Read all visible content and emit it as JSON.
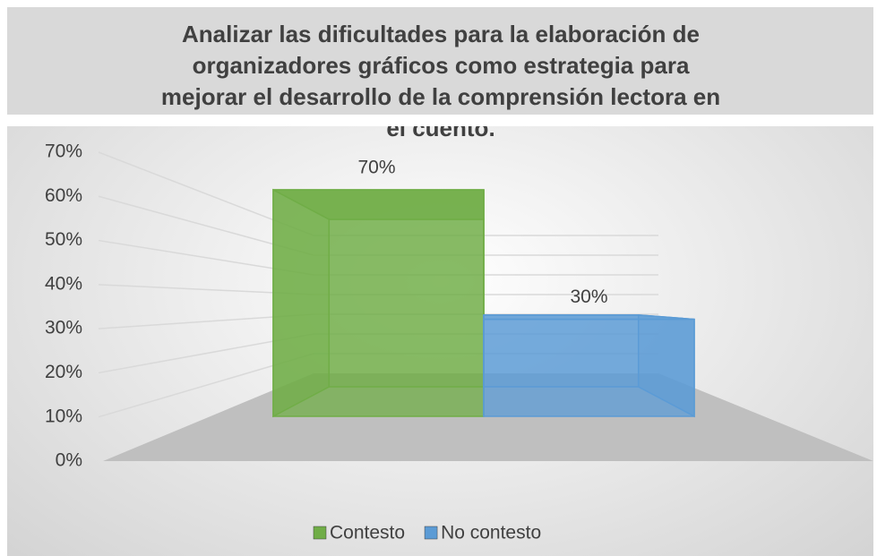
{
  "chart_data": {
    "type": "bar3d",
    "title": "Analizar las dificultades para la elaboración de organizadores gráficos como estrategia para mejorar el desarrollo de la comprensión lectora en el cuento.",
    "series": [
      {
        "name": "Contesto",
        "color": "#70ad47",
        "values": [
          70
        ],
        "value_labels": [
          "70%"
        ]
      },
      {
        "name": "No contesto",
        "color": "#5b9bd5",
        "values": [
          30
        ],
        "value_labels": [
          "30%"
        ]
      }
    ],
    "ylim": [
      0,
      70
    ],
    "yticks": [
      {
        "value": 0,
        "label": "0%"
      },
      {
        "value": 10,
        "label": "10%"
      },
      {
        "value": 20,
        "label": "20%"
      },
      {
        "value": 30,
        "label": "30%"
      },
      {
        "value": 40,
        "label": "40%"
      },
      {
        "value": 50,
        "label": "50%"
      },
      {
        "value": 60,
        "label": "60%"
      },
      {
        "value": 70,
        "label": "70%"
      }
    ],
    "grid": true,
    "legend": "bottom"
  }
}
